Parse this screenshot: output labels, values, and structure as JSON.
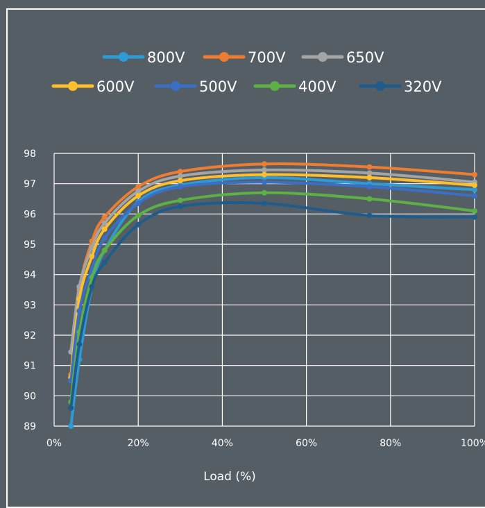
{
  "chart_data": {
    "type": "line",
    "xlabel": "Load (%)",
    "ylabel": "",
    "xlim": [
      0,
      100
    ],
    "ylim": [
      89,
      98
    ],
    "grid": true,
    "legend_position": "top",
    "x_ticks": [
      "0%",
      "20%",
      "40%",
      "60%",
      "80%",
      "100%"
    ],
    "y_ticks": [
      "89",
      "90",
      "91",
      "92",
      "93",
      "94",
      "95",
      "96",
      "97",
      "98"
    ],
    "series": [
      {
        "name": "800V",
        "color": "#2e9bd6",
        "x": [
          4,
          6,
          9,
          12,
          20,
          30,
          50,
          75,
          100
        ],
        "y": [
          89.0,
          91.2,
          93.6,
          94.8,
          96.4,
          96.95,
          97.2,
          97.0,
          96.8
        ]
      },
      {
        "name": "700V",
        "color": "#ed7d31",
        "x": [
          4,
          6,
          9,
          12,
          20,
          30,
          50,
          75,
          100
        ],
        "y": [
          90.7,
          93.5,
          95.1,
          95.9,
          96.9,
          97.4,
          97.65,
          97.55,
          97.3
        ]
      },
      {
        "name": "650V",
        "color": "#a5a5a5",
        "x": [
          4,
          6,
          9,
          12,
          20,
          30,
          50,
          75,
          100
        ],
        "y": [
          91.45,
          93.6,
          94.9,
          95.7,
          96.75,
          97.25,
          97.45,
          97.35,
          97.05
        ]
      },
      {
        "name": "600V",
        "color": "#fdbf2d",
        "x": [
          4,
          6,
          9,
          12,
          20,
          30,
          50,
          75,
          100
        ],
        "y": [
          90.6,
          93.2,
          94.6,
          95.5,
          96.6,
          97.1,
          97.3,
          97.2,
          96.95
        ]
      },
      {
        "name": "500V",
        "color": "#3a6fc4",
        "x": [
          4,
          6,
          9,
          12,
          20,
          30,
          50,
          75,
          100
        ],
        "y": [
          90.5,
          92.8,
          94.2,
          95.2,
          96.35,
          96.9,
          97.05,
          96.9,
          96.6
        ]
      },
      {
        "name": "400V",
        "color": "#5cb045",
        "x": [
          4,
          6,
          9,
          12,
          20,
          30,
          50,
          75,
          100
        ],
        "y": [
          89.8,
          92.1,
          93.9,
          94.8,
          95.95,
          96.45,
          96.7,
          96.5,
          96.1
        ]
      },
      {
        "name": "320V",
        "color": "#1f5c8c",
        "x": [
          4,
          6,
          9,
          12,
          20,
          30,
          50,
          75,
          100
        ],
        "y": [
          89.6,
          91.7,
          93.6,
          94.4,
          95.65,
          96.25,
          96.35,
          95.95,
          95.9
        ]
      }
    ]
  }
}
